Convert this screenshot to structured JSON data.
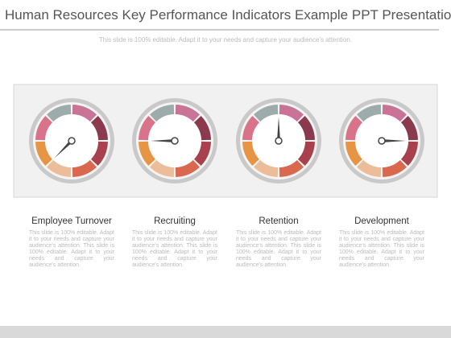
{
  "header": {
    "title": "Human Resources Key Performance Indicators Example PPT Presentation",
    "subtitle": "This slide is 100% editable. Adapt it to your needs and capture your audience's attention."
  },
  "columns": [
    {
      "heading": "Employee Turnover",
      "text": "This slide is 100% editable. Adapt it to your needs and capture your audience's attention. This slide is 100% editable. Adapt it to your needs and capture your audience's attention."
    },
    {
      "heading": "Recruiting",
      "text": "This slide is 100% editable. Adapt it to your needs and capture your audience's attention. This slide is 100% editable. Adapt it to your needs and capture your audience's attention."
    },
    {
      "heading": "Retention",
      "text": "This slide is 100% editable. Adapt it to your needs and capture your audience's attention. This slide is 100% editable. Adapt it to your needs and capture your audience's attention."
    },
    {
      "heading": "Development",
      "text": "This slide is 100% editable. Adapt it to your needs and capture your audience's attention. This slide is 100% editable. Adapt it to your needs and capture your audience's attention."
    }
  ]
}
